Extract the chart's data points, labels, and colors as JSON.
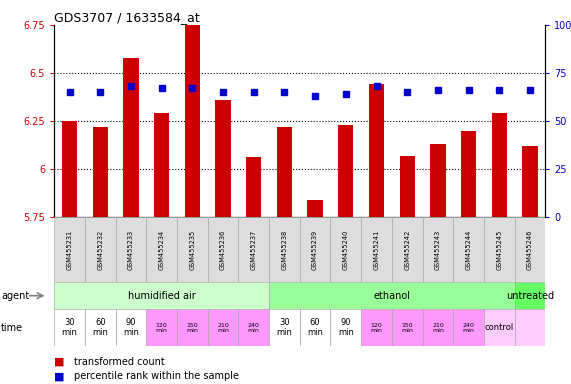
{
  "title": "GDS3707 / 1633584_at",
  "samples": [
    "GSM455231",
    "GSM455232",
    "GSM455233",
    "GSM455234",
    "GSM455235",
    "GSM455236",
    "GSM455237",
    "GSM455238",
    "GSM455239",
    "GSM455240",
    "GSM455241",
    "GSM455242",
    "GSM455243",
    "GSM455244",
    "GSM455245",
    "GSM455246"
  ],
  "transformed_count": [
    6.25,
    6.22,
    6.58,
    6.29,
    6.75,
    6.36,
    6.06,
    6.22,
    5.84,
    6.23,
    6.44,
    6.07,
    6.13,
    6.2,
    6.29,
    6.12
  ],
  "percentile_rank": [
    65,
    65,
    68,
    67,
    67,
    65,
    65,
    65,
    63,
    64,
    68,
    65,
    66,
    66,
    66,
    66
  ],
  "ymin": 5.75,
  "ymax": 6.75,
  "yticks_left": [
    5.75,
    6.0,
    6.25,
    6.5,
    6.75
  ],
  "ytick_labels_left": [
    "5.75",
    "6",
    "6.25",
    "6.5",
    "6.75"
  ],
  "yticks_right": [
    0,
    25,
    50,
    75,
    100
  ],
  "ytick_labels_right": [
    "0",
    "25",
    "50",
    "75",
    "100%"
  ],
  "bar_color": "#cc0000",
  "dot_color": "#0000cc",
  "agent_groups": [
    {
      "label": "humidified air",
      "start": 0,
      "end": 7,
      "color": "#ccffcc"
    },
    {
      "label": "ethanol",
      "start": 7,
      "end": 15,
      "color": "#99ff99"
    },
    {
      "label": "untreated",
      "start": 15,
      "end": 16,
      "color": "#66ff66"
    }
  ],
  "time_vals_per_sample": [
    "30\nmin",
    "60\nmin",
    "90\nmin",
    "120\nmin",
    "150\nmin",
    "210\nmin",
    "240\nmin",
    "30\nmin",
    "60\nmin",
    "90\nmin",
    "120\nmin",
    "150\nmin",
    "210\nmin",
    "240\nmin",
    "control",
    ""
  ],
  "time_colors_per_sample": [
    "#ffffff",
    "#ffffff",
    "#ffffff",
    "#ff99ff",
    "#ff99ff",
    "#ff99ff",
    "#ff99ff",
    "#ffffff",
    "#ffffff",
    "#ffffff",
    "#ff99ff",
    "#ff99ff",
    "#ff99ff",
    "#ff99ff",
    "#ffccff",
    "#ffccff"
  ],
  "time_label_small": [
    false,
    false,
    false,
    true,
    true,
    true,
    true,
    false,
    false,
    false,
    true,
    true,
    true,
    true,
    false,
    false
  ],
  "legend_bar": "transformed count",
  "legend_dot": "percentile rank within the sample",
  "bar_width": 0.5
}
